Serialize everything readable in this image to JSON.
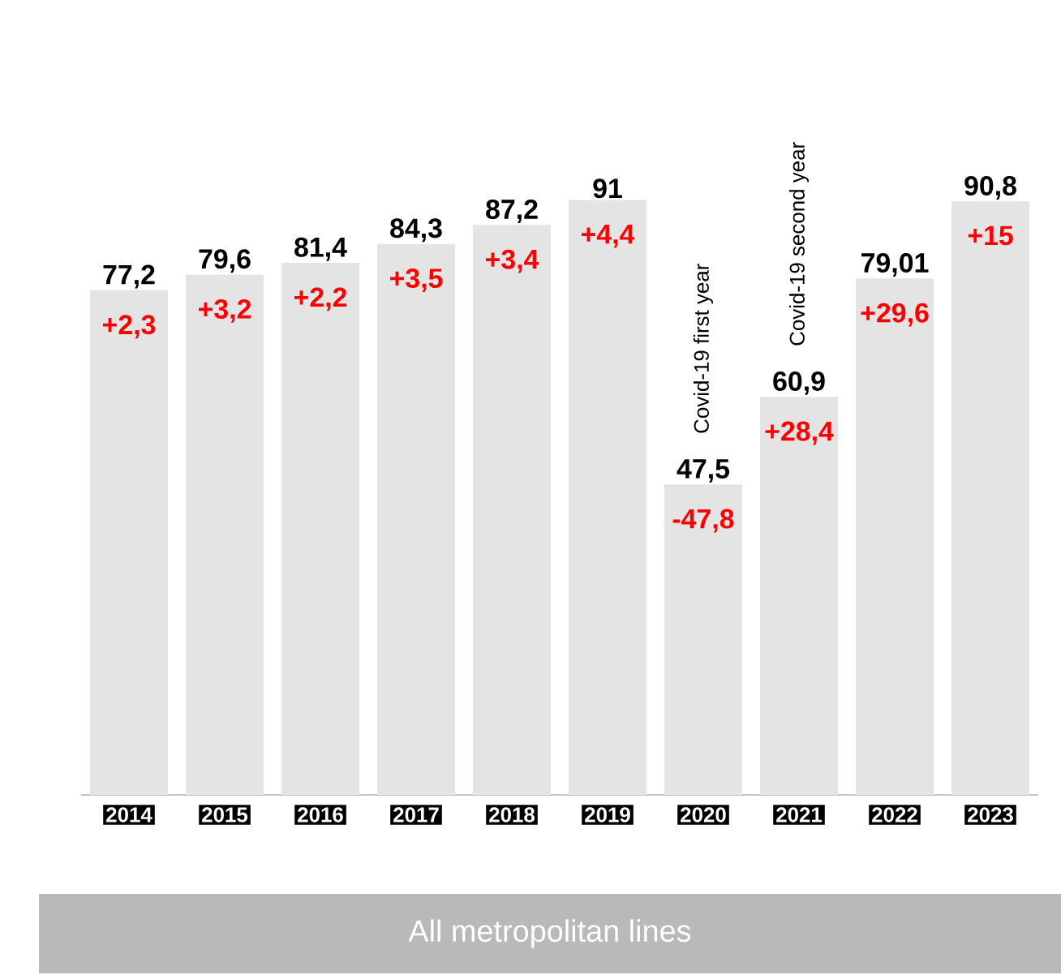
{
  "chart_data": {
    "type": "bar",
    "categories": [
      "2014",
      "2015",
      "2016",
      "2017",
      "2018",
      "2019",
      "2020",
      "2021",
      "2022",
      "2023"
    ],
    "values": [
      77.2,
      79.6,
      81.4,
      84.3,
      87.2,
      91,
      47.5,
      60.9,
      79.01,
      90.8
    ],
    "value_labels": [
      "77,2",
      "79,6",
      "81,4",
      "84,3",
      "87,2",
      "91",
      "47,5",
      "60,9",
      "79,01",
      "90,8"
    ],
    "color": "#e4e4e4",
    "annotations": [
      {
        "text": "+2,3",
        "x": "2014",
        "y": 77.2
      },
      {
        "text": "+3,2",
        "x": "2015",
        "y": 79.6
      },
      {
        "text": "+2,2",
        "x": "2016",
        "y": 81.4
      },
      {
        "text": "+3,5",
        "x": "2017",
        "y": 84.3
      },
      {
        "text": "+3,4",
        "x": "2018",
        "y": 87.2
      },
      {
        "text": "+4,4",
        "x": "2019",
        "y": 91
      },
      {
        "text": "-47,8",
        "x": "2020",
        "y": 47.5
      },
      {
        "text": "+28,4",
        "x": "2021",
        "y": 60.9
      },
      {
        "text": "+29,6",
        "x": "2022",
        "y": 79.01
      },
      {
        "text": "+15",
        "x": "2023",
        "y": 90.8
      },
      {
        "text": "Covid-19 first year",
        "x": "2020",
        "y": 47.5
      },
      {
        "text": "Covid-19 second year",
        "x": "2021",
        "y": 60.9
      },
      "All metropolitan lines"
    ]
  }
}
